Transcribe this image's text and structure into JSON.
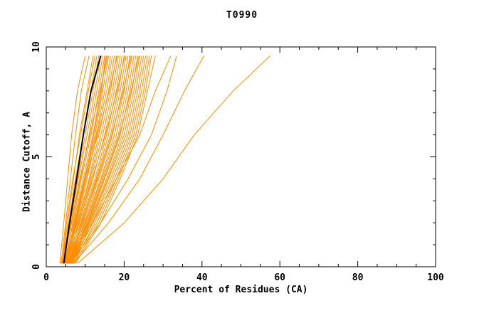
{
  "title": "T0990",
  "colors": {
    "model": "#ff8c00",
    "highlight": "#000000",
    "frame": "#000000"
  },
  "chart_data": {
    "type": "line",
    "title": "T0990",
    "xlabel": "Percent of Residues (CA)",
    "ylabel": "Distance Cutoff, A",
    "xlim": [
      0,
      100
    ],
    "ylim": [
      0,
      10
    ],
    "xticks": [
      0,
      20,
      40,
      60,
      80,
      100
    ],
    "yticks": [
      0,
      5,
      10
    ],
    "x_minor_step": 5,
    "y_minor_step": 1,
    "legend": "none",
    "grid": false,
    "y_grid": [
      0.15,
      2,
      4,
      6,
      8,
      9.6
    ],
    "series": [
      {
        "name": "model-01",
        "color_key": "model",
        "width": 1,
        "x": [
          3.5,
          4.5,
          5.5,
          6.5,
          8.0,
          10.0
        ]
      },
      {
        "name": "model-02",
        "color_key": "model",
        "width": 1,
        "x": [
          3.8,
          5.0,
          6.2,
          7.5,
          9.0,
          11.0
        ]
      },
      {
        "name": "model-03",
        "color_key": "model",
        "width": 1,
        "x": [
          4.0,
          5.5,
          7.0,
          8.5,
          10.5,
          12.0
        ]
      },
      {
        "name": "model-04",
        "color_key": "model",
        "width": 1,
        "x": [
          4.1,
          5.2,
          6.8,
          8.8,
          10.8,
          12.5
        ]
      },
      {
        "name": "model-05",
        "color_key": "model",
        "width": 1,
        "x": [
          4.2,
          5.8,
          7.5,
          9.5,
          11.5,
          13.0
        ]
      },
      {
        "name": "model-06",
        "color_key": "model",
        "width": 1,
        "x": [
          4.0,
          6.0,
          8.0,
          10.0,
          12.0,
          13.5
        ]
      },
      {
        "name": "model-07",
        "color_key": "model",
        "width": 1,
        "x": [
          4.5,
          6.2,
          8.2,
          10.5,
          12.5,
          14.0
        ]
      },
      {
        "name": "model-08",
        "color_key": "model",
        "width": 1,
        "x": [
          4.3,
          6.5,
          8.8,
          11.0,
          13.0,
          14.5
        ]
      },
      {
        "name": "model-09",
        "color_key": "model",
        "width": 1,
        "x": [
          4.8,
          6.8,
          9.0,
          11.5,
          13.5,
          15.0
        ]
      },
      {
        "name": "model-10",
        "color_key": "model",
        "width": 1,
        "x": [
          4.9,
          7.4,
          9.9,
          12.2,
          14.2,
          15.2
        ]
      },
      {
        "name": "model-11",
        "color_key": "model",
        "width": 1,
        "x": [
          4.5,
          7.0,
          9.5,
          12.0,
          14.0,
          15.5
        ]
      },
      {
        "name": "model-12",
        "color_key": "model",
        "width": 1,
        "x": [
          4.4,
          6.4,
          8.6,
          11.2,
          13.8,
          15.8
        ]
      },
      {
        "name": "model-13",
        "color_key": "model",
        "width": 1,
        "x": [
          5.0,
          7.2,
          9.8,
          12.5,
          14.5,
          16.0
        ]
      },
      {
        "name": "model-14",
        "color_key": "model",
        "width": 1,
        "x": [
          4.6,
          7.5,
          10.0,
          12.8,
          15.0,
          16.5
        ]
      },
      {
        "name": "model-15",
        "color_key": "model",
        "width": 1,
        "x": [
          5.2,
          7.8,
          10.5,
          13.0,
          15.5,
          17.0
        ]
      },
      {
        "name": "model-16",
        "color_key": "model",
        "width": 1,
        "x": [
          4.8,
          8.0,
          11.0,
          13.5,
          16.0,
          17.5
        ]
      },
      {
        "name": "model-17",
        "color_key": "model",
        "width": 1,
        "x": [
          5.5,
          8.2,
          11.2,
          14.0,
          16.5,
          18.0
        ]
      },
      {
        "name": "model-18",
        "color_key": "model",
        "width": 1,
        "x": [
          5.1,
          7.6,
          10.2,
          13.2,
          16.2,
          18.2
        ]
      },
      {
        "name": "model-19",
        "color_key": "model",
        "width": 1,
        "x": [
          5.0,
          8.5,
          11.5,
          14.5,
          17.0,
          18.5
        ]
      },
      {
        "name": "model-20",
        "color_key": "model",
        "width": 1,
        "x": [
          5.6,
          8.8,
          12.0,
          15.0,
          17.5,
          19.0
        ]
      },
      {
        "name": "model-21",
        "color_key": "model",
        "width": 1,
        "x": [
          5.2,
          9.0,
          12.5,
          15.5,
          18.0,
          19.5
        ]
      },
      {
        "name": "model-22",
        "color_key": "model",
        "width": 1,
        "x": [
          5.8,
          9.2,
          12.8,
          16.0,
          18.5,
          20.0
        ]
      },
      {
        "name": "model-23",
        "color_key": "model",
        "width": 1,
        "x": [
          5.3,
          8.4,
          11.8,
          15.2,
          18.2,
          20.2
        ]
      },
      {
        "name": "model-24",
        "color_key": "model",
        "width": 1,
        "x": [
          5.4,
          9.5,
          13.0,
          16.5,
          19.0,
          20.5
        ]
      },
      {
        "name": "model-25",
        "color_key": "model",
        "width": 1,
        "x": [
          6.0,
          9.8,
          13.5,
          17.0,
          19.5,
          21.0
        ]
      },
      {
        "name": "model-26",
        "color_key": "model",
        "width": 1,
        "x": [
          5.6,
          10.0,
          14.0,
          17.5,
          20.0,
          21.5
        ]
      },
      {
        "name": "model-27",
        "color_key": "model",
        "width": 1,
        "x": [
          5.9,
          9.4,
          13.2,
          16.8,
          19.8,
          21.8
        ]
      },
      {
        "name": "model-28",
        "color_key": "model",
        "width": 1,
        "x": [
          6.2,
          10.2,
          14.2,
          18.0,
          20.5,
          22.0
        ]
      },
      {
        "name": "model-29",
        "color_key": "model",
        "width": 1,
        "x": [
          5.8,
          10.5,
          14.5,
          18.5,
          21.0,
          22.5
        ]
      },
      {
        "name": "model-30",
        "color_key": "model",
        "width": 1,
        "x": [
          6.4,
          10.8,
          15.0,
          19.0,
          21.5,
          23.0
        ]
      },
      {
        "name": "model-31",
        "color_key": "model",
        "width": 1,
        "x": [
          6.0,
          11.0,
          15.5,
          19.5,
          22.0,
          23.5
        ]
      },
      {
        "name": "model-32",
        "color_key": "model",
        "width": 1,
        "x": [
          6.3,
          10.6,
          14.8,
          18.8,
          21.8,
          23.8
        ]
      },
      {
        "name": "model-33",
        "color_key": "model",
        "width": 1,
        "x": [
          6.5,
          11.2,
          15.8,
          20.0,
          22.5,
          24.0
        ]
      },
      {
        "name": "model-34",
        "color_key": "model",
        "width": 1,
        "x": [
          6.2,
          11.5,
          16.0,
          20.5,
          23.0,
          24.5
        ]
      },
      {
        "name": "model-35",
        "color_key": "model",
        "width": 1,
        "x": [
          6.8,
          11.8,
          16.5,
          21.0,
          23.5,
          25.0
        ]
      },
      {
        "name": "model-36",
        "color_key": "model",
        "width": 1,
        "x": [
          6.4,
          12.0,
          17.0,
          21.5,
          24.0,
          25.5
        ]
      },
      {
        "name": "model-37",
        "color_key": "model",
        "width": 1,
        "x": [
          7.0,
          12.5,
          17.5,
          22.0,
          24.5,
          26.0
        ]
      },
      {
        "name": "model-38",
        "color_key": "model",
        "width": 1,
        "x": [
          6.6,
          13.0,
          18.0,
          22.5,
          25.0,
          26.5
        ]
      },
      {
        "name": "model-39",
        "color_key": "model",
        "width": 1,
        "x": [
          7.2,
          13.5,
          18.5,
          23.0,
          25.5,
          27.0
        ]
      },
      {
        "name": "model-40",
        "color_key": "model",
        "width": 1,
        "x": [
          7.5,
          14.0,
          19.0,
          23.5,
          26.0,
          28.0
        ]
      },
      {
        "name": "model-41",
        "color_key": "model",
        "width": 1,
        "x": [
          5.5,
          12.0,
          18.0,
          24.0,
          28.0,
          32.0
        ]
      },
      {
        "name": "model-42",
        "color_key": "model",
        "width": 1,
        "x": [
          6.0,
          14.0,
          21.0,
          27.0,
          31.0,
          33.5
        ]
      },
      {
        "name": "model-43",
        "color_key": "model",
        "width": 1,
        "x": [
          7.0,
          16.0,
          24.0,
          30.0,
          35.5,
          40.5
        ]
      },
      {
        "name": "model-44",
        "color_key": "model",
        "width": 1,
        "x": [
          8.0,
          20.0,
          30.0,
          38.0,
          48.0,
          57.5
        ]
      },
      {
        "name": "highlighted-model",
        "color_key": "highlight",
        "width": 2,
        "x": [
          4.5,
          6.0,
          7.8,
          9.5,
          11.5,
          14.0
        ]
      }
    ]
  }
}
